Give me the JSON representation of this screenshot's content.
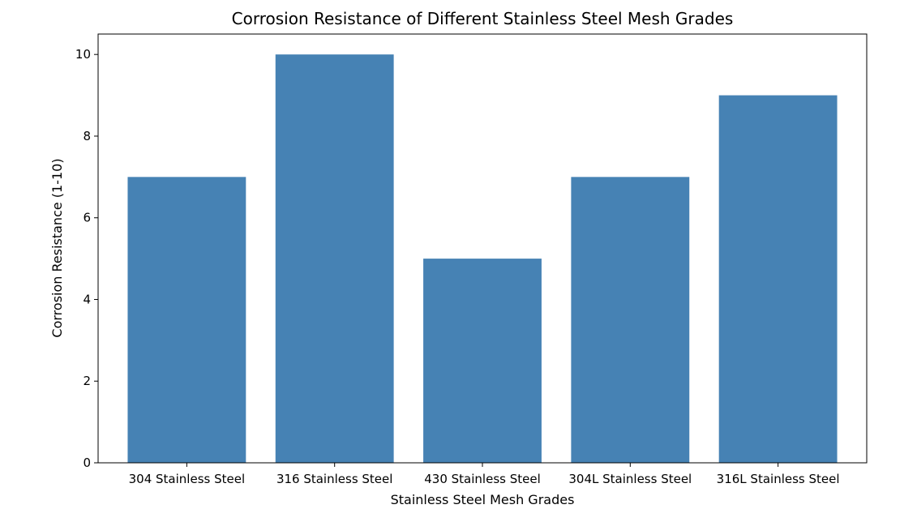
{
  "chart_data": {
    "type": "bar",
    "title": "Corrosion Resistance of Different Stainless Steel Mesh Grades",
    "xlabel": "Stainless Steel Mesh Grades",
    "ylabel": "Corrosion Resistance (1-10)",
    "categories": [
      "304 Stainless Steel",
      "316 Stainless Steel",
      "430 Stainless Steel",
      "304L Stainless Steel",
      "316L Stainless Steel"
    ],
    "values": [
      7,
      10,
      5,
      7,
      9
    ],
    "ylim": [
      0,
      10.5
    ],
    "yticks": [
      0,
      2,
      4,
      6,
      8,
      10
    ],
    "bar_color": "#4682b4",
    "grid": false,
    "legend": "none"
  }
}
